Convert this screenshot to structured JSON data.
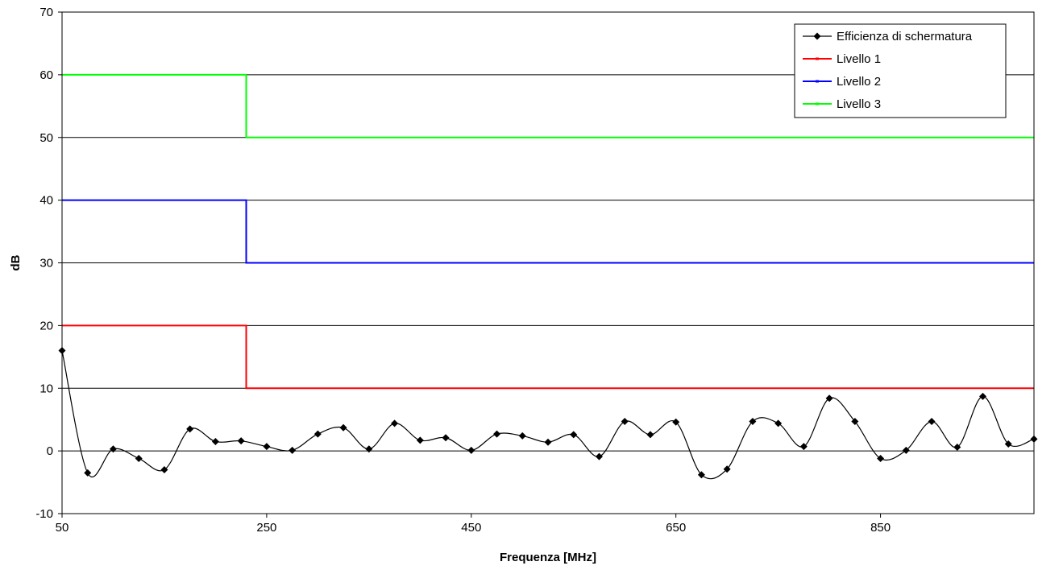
{
  "chart_data": {
    "type": "line",
    "title": "",
    "xlabel": "Frequenza [MHz]",
    "ylabel": "dB",
    "xlim": [
      50,
      1000
    ],
    "ylim": [
      -10,
      70
    ],
    "x_ticks": [
      50,
      250,
      450,
      650,
      850
    ],
    "y_ticks": [
      -10,
      0,
      10,
      20,
      30,
      40,
      50,
      60,
      70
    ],
    "grid": "horizontal",
    "legend_position": "top-right",
    "series": [
      {
        "name": "Efficienza di schermatura",
        "color": "#000000",
        "marker": "diamond",
        "smooth": true,
        "x": [
          50,
          75,
          100,
          125,
          150,
          175,
          200,
          225,
          250,
          275,
          300,
          325,
          350,
          375,
          400,
          425,
          450,
          475,
          500,
          525,
          550,
          575,
          600,
          625,
          650,
          675,
          700,
          725,
          750,
          775,
          800,
          825,
          850,
          875,
          900,
          925,
          950,
          975,
          1000
        ],
        "y": [
          16,
          -3.5,
          0.3,
          -1.2,
          -3,
          3.5,
          1.5,
          1.6,
          0.7,
          0.1,
          2.7,
          3.7,
          0.3,
          4.4,
          1.7,
          2.1,
          0.1,
          2.7,
          2.4,
          1.4,
          2.6,
          -0.9,
          4.7,
          2.6,
          4.6,
          -3.8,
          -2.9,
          4.7,
          4.4,
          0.7,
          8.4,
          4.7,
          -1.2,
          0.1,
          4.7,
          0.6,
          8.7,
          1.1,
          1.9
        ]
      },
      {
        "name": "Livello 1",
        "color": "#ff0000",
        "step": true,
        "x": [
          50,
          230,
          230,
          1000
        ],
        "y": [
          20,
          20,
          10,
          10
        ]
      },
      {
        "name": "Livello 2",
        "color": "#0000ff",
        "step": true,
        "x": [
          50,
          230,
          230,
          1000
        ],
        "y": [
          40,
          40,
          30,
          30
        ]
      },
      {
        "name": "Livello 3",
        "color": "#00ff00",
        "step": true,
        "x": [
          50,
          230,
          230,
          1000
        ],
        "y": [
          60,
          60,
          50,
          50
        ]
      }
    ]
  }
}
